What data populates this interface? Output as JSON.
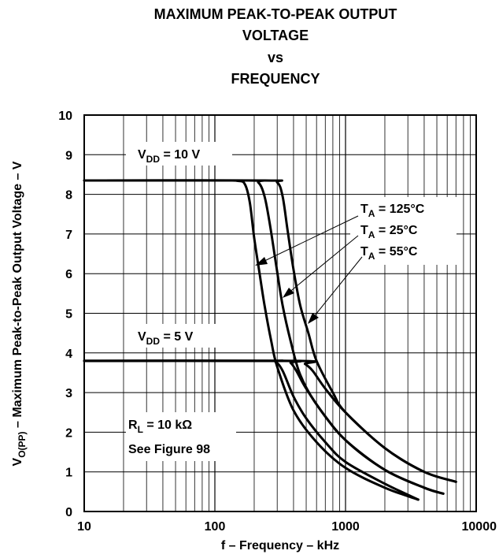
{
  "chart_data": {
    "type": "line",
    "title_lines": [
      "MAXIMUM PEAK-TO-PEAK OUTPUT",
      "VOLTAGE",
      "vs",
      "FREQUENCY"
    ],
    "xlabel": "f – Frequency – kHz",
    "ylabel": {
      "prefix": "V",
      "subscript": "O(PP)",
      "rest": " – Maximum Peak-to-Peak Output Voltage – V"
    },
    "x_scale": "log",
    "xlim": [
      10,
      10000
    ],
    "ylim": [
      0,
      10
    ],
    "x_ticks": [
      10,
      100,
      1000,
      10000
    ],
    "x_tick_labels": [
      "10",
      "100",
      "1000",
      "10000"
    ],
    "y_ticks": [
      0,
      1,
      2,
      3,
      4,
      5,
      6,
      7,
      8,
      9,
      10
    ],
    "y_tick_labels": [
      "0",
      "1",
      "2",
      "3",
      "4",
      "5",
      "6",
      "7",
      "8",
      "9",
      "10"
    ],
    "grid": true,
    "series": [
      {
        "group": "vdd10",
        "temp": "125",
        "points": [
          [
            10,
            8.35
          ],
          [
            100,
            8.35
          ],
          [
            150,
            8.34
          ],
          [
            170,
            8.25
          ],
          [
            185,
            7.8
          ],
          [
            200,
            6.9
          ],
          [
            220,
            6.0
          ],
          [
            240,
            5.2
          ],
          [
            270,
            4.3
          ],
          [
            300,
            3.65
          ],
          [
            400,
            2.55
          ],
          [
            600,
            1.75
          ],
          [
            1000,
            1.1
          ],
          [
            2000,
            0.6
          ],
          [
            3600,
            0.3
          ]
        ]
      },
      {
        "group": "vdd10",
        "temp": "25",
        "points": [
          [
            10,
            8.35
          ],
          [
            180,
            8.35
          ],
          [
            215,
            8.3
          ],
          [
            240,
            7.95
          ],
          [
            265,
            7.2
          ],
          [
            295,
            6.2
          ],
          [
            330,
            5.2
          ],
          [
            380,
            4.3
          ],
          [
            450,
            3.45
          ],
          [
            600,
            2.7
          ],
          [
            1000,
            1.8
          ],
          [
            2000,
            1.05
          ],
          [
            4000,
            0.6
          ],
          [
            5600,
            0.45
          ]
        ]
      },
      {
        "group": "vdd10",
        "temp": "55",
        "points": [
          [
            10,
            8.35
          ],
          [
            240,
            8.35
          ],
          [
            300,
            8.3
          ],
          [
            330,
            7.95
          ],
          [
            360,
            7.1
          ],
          [
            400,
            6.1
          ],
          [
            450,
            5.2
          ],
          [
            520,
            4.5
          ],
          [
            600,
            3.8
          ],
          [
            800,
            3.0
          ],
          [
            1000,
            2.5
          ],
          [
            2000,
            1.6
          ],
          [
            4000,
            1.0
          ],
          [
            7000,
            0.75
          ]
        ]
      },
      {
        "group": "vdd5",
        "temp": "125",
        "points": [
          [
            10,
            3.8
          ],
          [
            250,
            3.8
          ],
          [
            290,
            3.78
          ],
          [
            330,
            3.55
          ],
          [
            400,
            2.9
          ],
          [
            500,
            2.35
          ],
          [
            700,
            1.75
          ],
          [
            1000,
            1.25
          ],
          [
            2000,
            0.7
          ],
          [
            3600,
            0.3
          ]
        ]
      },
      {
        "group": "vdd5",
        "temp": "25",
        "points": [
          [
            10,
            3.8
          ],
          [
            340,
            3.8
          ],
          [
            380,
            3.75
          ],
          [
            420,
            3.55
          ],
          [
            500,
            3.1
          ],
          [
            700,
            2.4
          ],
          [
            1000,
            1.8
          ],
          [
            2000,
            1.05
          ],
          [
            4000,
            0.6
          ],
          [
            5600,
            0.45
          ]
        ]
      },
      {
        "group": "vdd5",
        "temp": "55",
        "points": [
          [
            10,
            3.8
          ],
          [
            430,
            3.8
          ],
          [
            490,
            3.72
          ],
          [
            560,
            3.55
          ],
          [
            700,
            3.1
          ],
          [
            1000,
            2.5
          ],
          [
            2000,
            1.6
          ],
          [
            4000,
            1.0
          ],
          [
            7000,
            0.75
          ]
        ]
      }
    ],
    "annotations": {
      "vdd10": {
        "prefix": "V",
        "sub": "DD",
        "rest": " = 10 V"
      },
      "vdd5": {
        "prefix": "V",
        "sub": "DD",
        "rest": " = 5 V"
      },
      "ta125": {
        "prefix": "T",
        "sub": "A",
        "rest": " = 125°C"
      },
      "ta25": {
        "prefix": "T",
        "sub": "A",
        "rest": " = 25°C"
      },
      "ta55": {
        "prefix": "T",
        "sub": "A",
        "rest": " = 55°C"
      },
      "rl": {
        "prefix": "R",
        "sub": "L",
        "rest": " = 10 kΩ"
      },
      "see_figure": "See Figure 98"
    }
  }
}
